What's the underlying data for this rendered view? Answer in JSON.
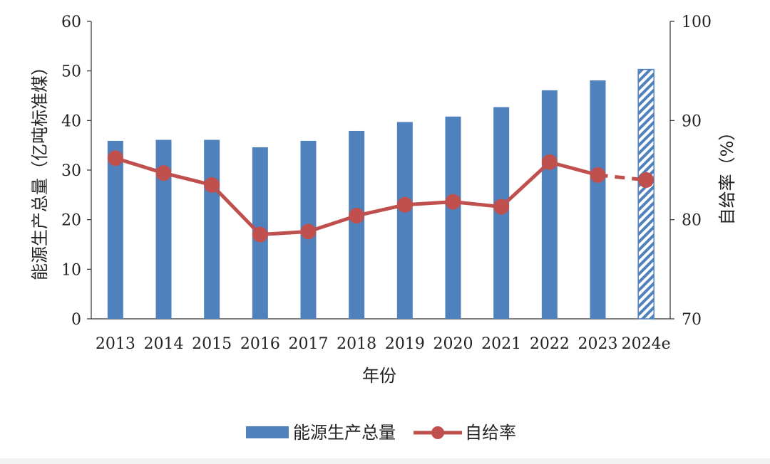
{
  "chart_data": {
    "type": "bar",
    "categories": [
      "2013",
      "2014",
      "2015",
      "2016",
      "2017",
      "2018",
      "2019",
      "2020",
      "2021",
      "2022",
      "2023",
      "2024e"
    ],
    "series": [
      {
        "name": "能源生产总量",
        "type": "bar",
        "axis": "left",
        "values": [
          35.9,
          36.1,
          36.1,
          34.6,
          35.9,
          37.9,
          39.7,
          40.8,
          42.7,
          46.1,
          48.1,
          50.3
        ],
        "color": "#4f81bd",
        "estimated_categories": [
          "2024e"
        ]
      },
      {
        "name": "自给率",
        "type": "line",
        "axis": "right",
        "values": [
          86.2,
          84.7,
          83.5,
          78.5,
          78.8,
          80.4,
          81.5,
          81.8,
          81.3,
          85.8,
          84.5,
          84.0
        ],
        "color": "#c0504d",
        "dashed_last_segment": true
      }
    ],
    "xlabel": "年份",
    "ylabel": "能源生产总量（亿吨标准煤）",
    "y2label": "自给率（%）",
    "ylim": [
      0,
      60
    ],
    "y2lim": [
      70,
      100
    ],
    "yticks": [
      "0",
      "10",
      "20",
      "30",
      "40",
      "50",
      "60"
    ],
    "y2ticks": [
      "70",
      "80",
      "90",
      "100"
    ],
    "grid": false,
    "legend_position": "bottom"
  }
}
